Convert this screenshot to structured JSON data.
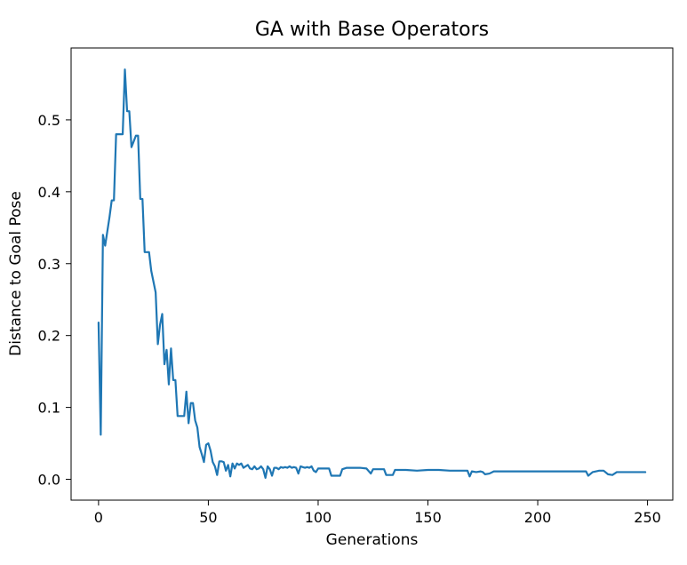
{
  "chart_data": {
    "type": "line",
    "title": "GA with Base Operators",
    "xlabel": "Generations",
    "ylabel": "Distance to Goal Pose",
    "xlim": [
      -12.5,
      261.5
    ],
    "ylim": [
      -0.029,
      0.6
    ],
    "xticks": [
      0,
      50,
      100,
      150,
      200,
      250
    ],
    "xtick_labels": [
      "0",
      "50",
      "100",
      "150",
      "200",
      "250"
    ],
    "yticks": [
      0.0,
      0.1,
      0.2,
      0.3,
      0.4,
      0.5
    ],
    "ytick_labels": [
      "0.0",
      "0.1",
      "0.2",
      "0.3",
      "0.4",
      "0.5"
    ],
    "grid": false,
    "legend": "none",
    "series": [
      {
        "color": "#1f77b4",
        "points": [
          [
            0,
            0.218
          ],
          [
            1,
            0.062
          ],
          [
            2,
            0.34
          ],
          [
            3,
            0.325
          ],
          [
            4,
            0.345
          ],
          [
            5,
            0.365
          ],
          [
            6,
            0.388
          ],
          [
            7,
            0.388
          ],
          [
            8,
            0.48
          ],
          [
            9,
            0.48
          ],
          [
            10,
            0.48
          ],
          [
            11,
            0.48
          ],
          [
            12,
            0.57
          ],
          [
            13,
            0.512
          ],
          [
            14,
            0.512
          ],
          [
            15,
            0.462
          ],
          [
            16,
            0.47
          ],
          [
            17,
            0.478
          ],
          [
            18,
            0.478
          ],
          [
            19,
            0.39
          ],
          [
            20,
            0.39
          ],
          [
            21,
            0.316
          ],
          [
            22,
            0.316
          ],
          [
            23,
            0.316
          ],
          [
            24,
            0.29
          ],
          [
            25,
            0.275
          ],
          [
            26,
            0.26
          ],
          [
            27,
            0.188
          ],
          [
            28,
            0.215
          ],
          [
            29,
            0.23
          ],
          [
            30,
            0.16
          ],
          [
            31,
            0.18
          ],
          [
            32,
            0.132
          ],
          [
            33,
            0.182
          ],
          [
            34,
            0.138
          ],
          [
            35,
            0.138
          ],
          [
            36,
            0.088
          ],
          [
            37,
            0.088
          ],
          [
            38,
            0.088
          ],
          [
            39,
            0.088
          ],
          [
            40,
            0.122
          ],
          [
            41,
            0.078
          ],
          [
            42,
            0.106
          ],
          [
            43,
            0.106
          ],
          [
            44,
            0.082
          ],
          [
            45,
            0.072
          ],
          [
            46,
            0.045
          ],
          [
            47,
            0.035
          ],
          [
            48,
            0.024
          ],
          [
            49,
            0.048
          ],
          [
            50,
            0.05
          ],
          [
            51,
            0.04
          ],
          [
            52,
            0.024
          ],
          [
            53,
            0.018
          ],
          [
            54,
            0.006
          ],
          [
            55,
            0.025
          ],
          [
            56,
            0.025
          ],
          [
            57,
            0.024
          ],
          [
            58,
            0.012
          ],
          [
            59,
            0.02
          ],
          [
            60,
            0.004
          ],
          [
            61,
            0.022
          ],
          [
            62,
            0.015
          ],
          [
            63,
            0.022
          ],
          [
            64,
            0.02
          ],
          [
            65,
            0.022
          ],
          [
            66,
            0.016
          ],
          [
            67,
            0.018
          ],
          [
            68,
            0.02
          ],
          [
            69,
            0.015
          ],
          [
            70,
            0.014
          ],
          [
            71,
            0.018
          ],
          [
            72,
            0.014
          ],
          [
            73,
            0.015
          ],
          [
            74,
            0.018
          ],
          [
            75,
            0.014
          ],
          [
            76,
            0.002
          ],
          [
            77,
            0.018
          ],
          [
            78,
            0.014
          ],
          [
            79,
            0.005
          ],
          [
            80,
            0.016
          ],
          [
            81,
            0.016
          ],
          [
            82,
            0.014
          ],
          [
            83,
            0.017
          ],
          [
            84,
            0.016
          ],
          [
            85,
            0.017
          ],
          [
            86,
            0.016
          ],
          [
            87,
            0.018
          ],
          [
            88,
            0.016
          ],
          [
            89,
            0.017
          ],
          [
            90,
            0.016
          ],
          [
            91,
            0.008
          ],
          [
            92,
            0.018
          ],
          [
            93,
            0.017
          ],
          [
            94,
            0.016
          ],
          [
            95,
            0.017
          ],
          [
            96,
            0.016
          ],
          [
            97,
            0.018
          ],
          [
            98,
            0.012
          ],
          [
            99,
            0.01
          ],
          [
            100,
            0.015
          ],
          [
            102,
            0.015
          ],
          [
            104,
            0.015
          ],
          [
            105,
            0.015
          ],
          [
            106,
            0.005
          ],
          [
            108,
            0.005
          ],
          [
            110,
            0.005
          ],
          [
            111,
            0.014
          ],
          [
            113,
            0.016
          ],
          [
            116,
            0.016
          ],
          [
            119,
            0.016
          ],
          [
            122,
            0.015
          ],
          [
            124,
            0.008
          ],
          [
            125,
            0.014
          ],
          [
            128,
            0.014
          ],
          [
            130,
            0.014
          ],
          [
            131,
            0.006
          ],
          [
            134,
            0.006
          ],
          [
            135,
            0.013
          ],
          [
            140,
            0.013
          ],
          [
            145,
            0.012
          ],
          [
            150,
            0.013
          ],
          [
            155,
            0.013
          ],
          [
            160,
            0.012
          ],
          [
            165,
            0.012
          ],
          [
            168,
            0.012
          ],
          [
            169,
            0.004
          ],
          [
            170,
            0.011
          ],
          [
            172,
            0.01
          ],
          [
            174,
            0.011
          ],
          [
            175,
            0.01
          ],
          [
            176,
            0.007
          ],
          [
            178,
            0.008
          ],
          [
            180,
            0.011
          ],
          [
            185,
            0.011
          ],
          [
            190,
            0.011
          ],
          [
            195,
            0.011
          ],
          [
            200,
            0.011
          ],
          [
            205,
            0.011
          ],
          [
            210,
            0.011
          ],
          [
            215,
            0.011
          ],
          [
            220,
            0.011
          ],
          [
            222,
            0.011
          ],
          [
            223,
            0.005
          ],
          [
            225,
            0.01
          ],
          [
            228,
            0.012
          ],
          [
            230,
            0.012
          ],
          [
            232,
            0.007
          ],
          [
            234,
            0.006
          ],
          [
            236,
            0.01
          ],
          [
            238,
            0.01
          ],
          [
            240,
            0.01
          ],
          [
            244,
            0.01
          ],
          [
            246,
            0.01
          ],
          [
            249,
            0.01
          ]
        ]
      }
    ]
  }
}
